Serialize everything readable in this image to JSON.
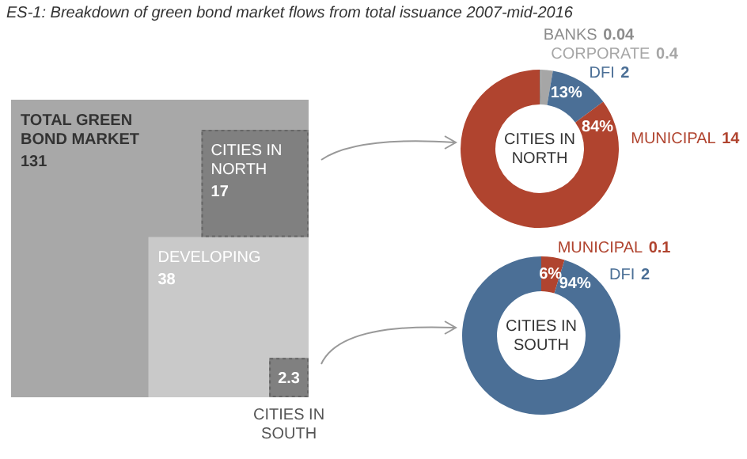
{
  "chart_data": [
    {
      "type": "other",
      "title": "ES-1: Breakdown of green bond market flows from total issuance 2007-mid-2016",
      "categories": [
        "TOTAL GREEN BOND MARKET",
        "CITIES IN NORTH",
        "DEVELOPING",
        "CITIES IN SOUTH"
      ],
      "values": [
        131,
        17,
        38,
        2.3
      ],
      "colors": [
        "#a8a8a8",
        "#808080",
        "#c9c9c9",
        "#808080"
      ],
      "data_labels": true
    },
    {
      "type": "donut",
      "title": "CITIES IN NORTH",
      "categories": [
        "BANKS",
        "CORPORATE",
        "DFI",
        "MUNICIPAL"
      ],
      "values": [
        0.04,
        0.4,
        2,
        14
      ],
      "colors": [
        "#8c8c8c",
        "#a6a6a6",
        "#4b6f96",
        "#b0442f"
      ],
      "annotations": [
        {
          "text": "13%",
          "x": "DFI"
        },
        {
          "text": "84%",
          "x": "MUNICIPAL"
        }
      ],
      "data_labels": true
    },
    {
      "type": "donut",
      "title": "CITIES IN SOUTH",
      "categories": [
        "MUNICIPAL",
        "DFI"
      ],
      "values": [
        0.1,
        2
      ],
      "colors": [
        "#b0442f",
        "#4b6f96"
      ],
      "annotations": [
        {
          "text": "6%",
          "x": "MUNICIPAL"
        },
        {
          "text": "94%",
          "x": "DFI"
        }
      ],
      "data_labels": true
    }
  ]
}
